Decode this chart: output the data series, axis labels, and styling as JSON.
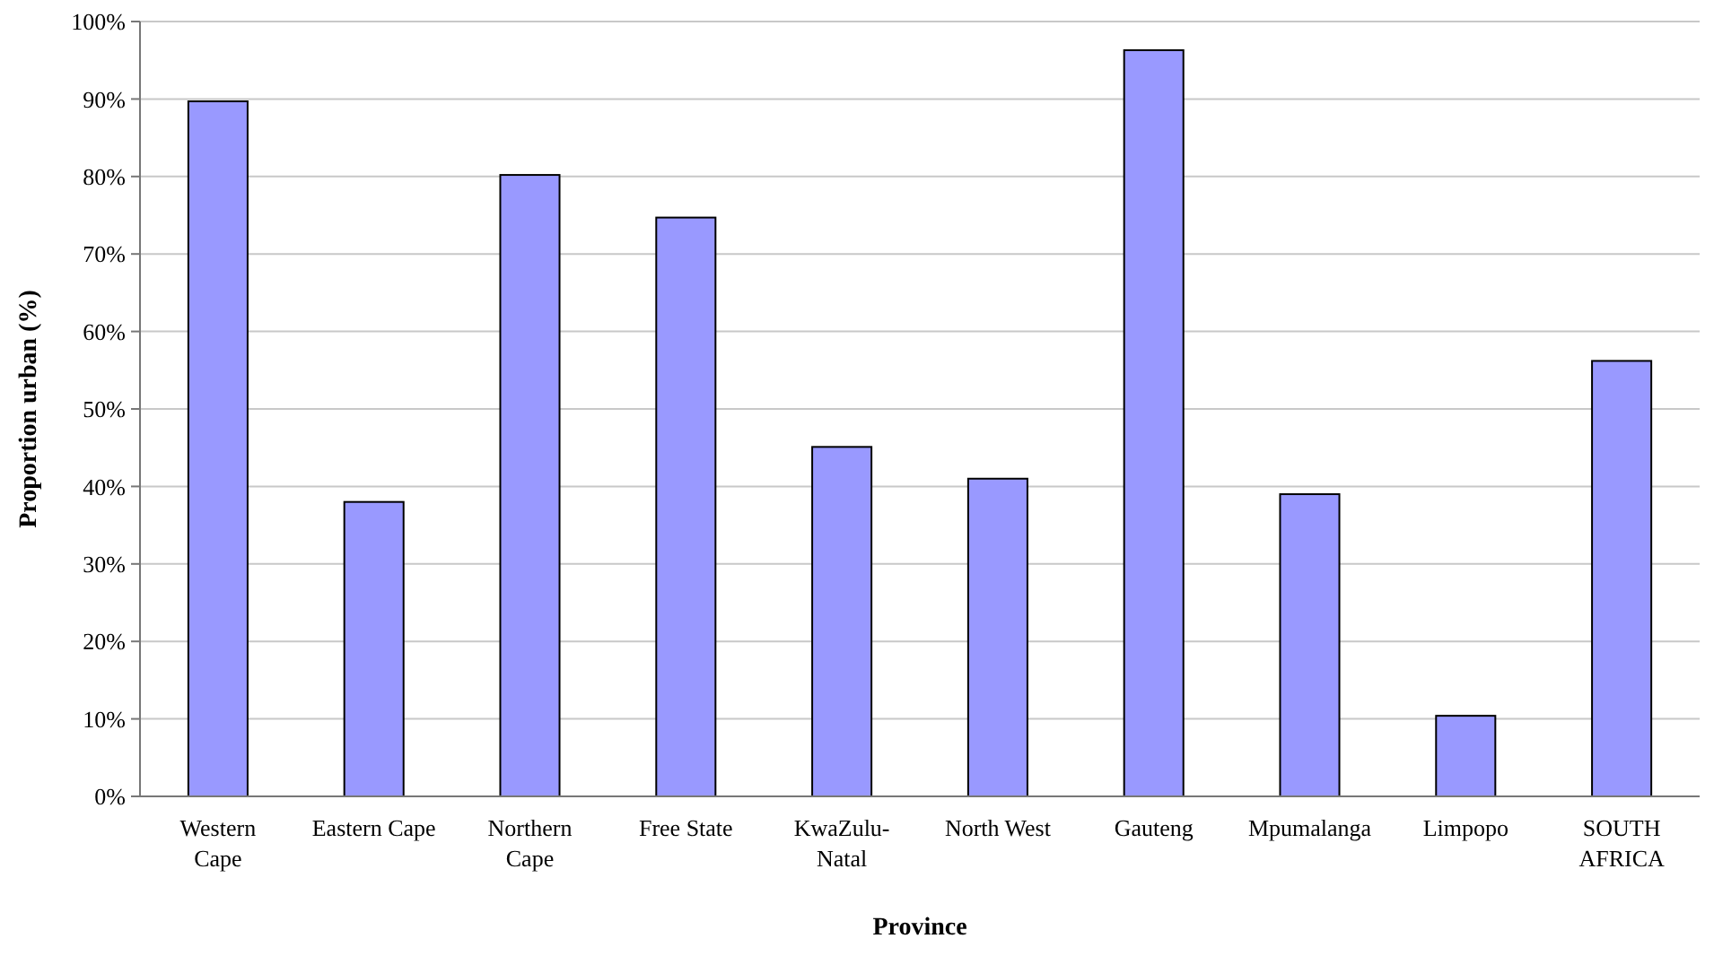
{
  "chart_data": {
    "type": "bar",
    "xlabel": "Province",
    "ylabel": "Proportion urban (%)",
    "categories": [
      "Western\nCape",
      "Eastern Cape",
      "Northern\nCape",
      "Free State",
      "KwaZulu-\nNatal",
      "North West",
      "Gauteng",
      "Mpumalanga",
      "Limpopo",
      "SOUTH\nAFRICA"
    ],
    "values": [
      89.7,
      38,
      80.2,
      74.7,
      45.1,
      41,
      96.3,
      39,
      10.4,
      56.2
    ],
    "color": "#9999ff",
    "ylim": [
      0,
      100
    ],
    "yticks": [
      {
        "value": 0,
        "label": "0%"
      },
      {
        "value": 10,
        "label": "10%"
      },
      {
        "value": 20,
        "label": "20%"
      },
      {
        "value": 30,
        "label": "30%"
      },
      {
        "value": 40,
        "label": "40%"
      },
      {
        "value": 50,
        "label": "50%"
      },
      {
        "value": 60,
        "label": "60%"
      },
      {
        "value": 70,
        "label": "70%"
      },
      {
        "value": 80,
        "label": "80%"
      },
      {
        "value": 90,
        "label": "90%"
      },
      {
        "value": 100,
        "label": "100%"
      }
    ],
    "grid": "y"
  }
}
